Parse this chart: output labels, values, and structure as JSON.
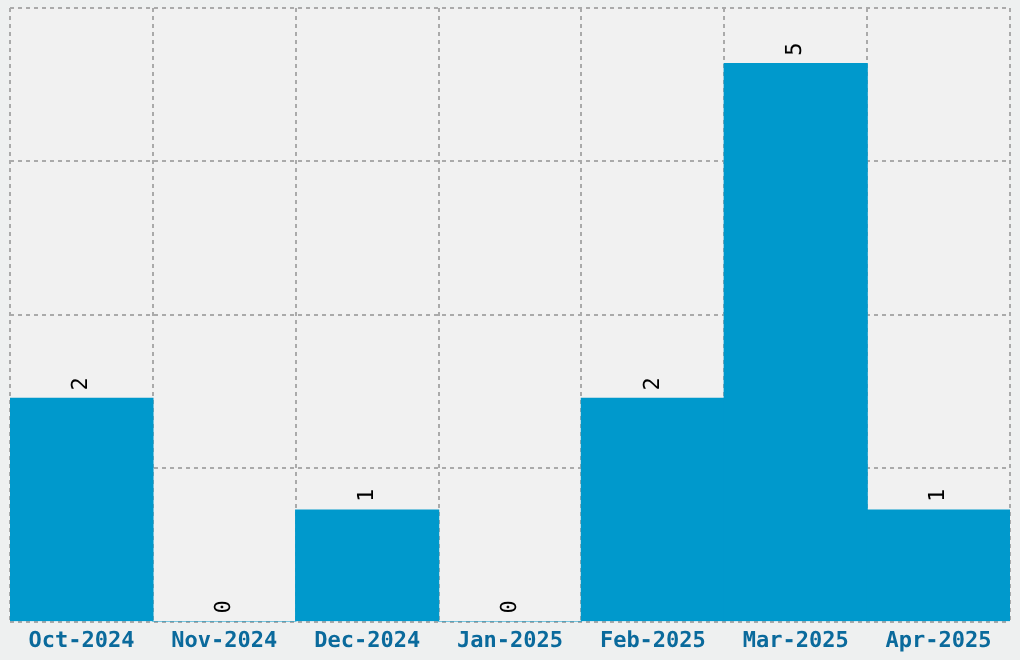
{
  "chart_data": {
    "type": "bar",
    "categories": [
      "Oct-2024",
      "Nov-2024",
      "Dec-2024",
      "Jan-2025",
      "Feb-2025",
      "Mar-2025",
      "Apr-2025"
    ],
    "values": [
      2,
      0,
      1,
      0,
      2,
      5,
      1
    ],
    "color": "#0099cc",
    "data_labels": true,
    "grid": true,
    "tick_labels": "x",
    "ylim": [
      0,
      5.5
    ],
    "yticks": [
      {
        "value": 0,
        "label": null
      },
      {
        "value": 1.375,
        "label": null
      },
      {
        "value": 2.75,
        "label": null
      },
      {
        "value": 4.125,
        "label": null
      },
      {
        "value": 5.5,
        "label": null
      }
    ]
  }
}
